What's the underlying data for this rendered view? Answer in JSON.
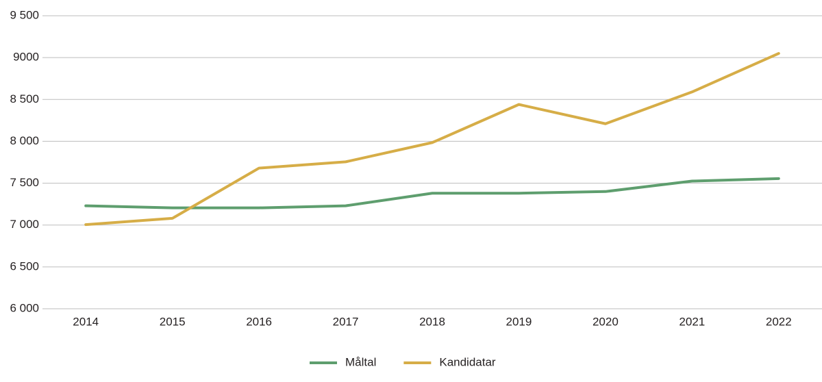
{
  "chart_data": {
    "type": "line",
    "categories": [
      "2014",
      "2015",
      "2016",
      "2017",
      "2018",
      "2019",
      "2020",
      "2021",
      "2022"
    ],
    "series": [
      {
        "name": "Måltal",
        "color": "#5e9e6e",
        "values": [
          7230,
          7205,
          7205,
          7230,
          7380,
          7380,
          7400,
          7525,
          7555
        ]
      },
      {
        "name": "Kandidatar",
        "color": "#d6ad47",
        "values": [
          7005,
          7080,
          7680,
          7755,
          7985,
          8440,
          8210,
          8590,
          9050
        ]
      }
    ],
    "ylim": [
      6000,
      9500
    ],
    "yticks": [
      {
        "value": 6000,
        "label": "6 000"
      },
      {
        "value": 6500,
        "label": "6 500"
      },
      {
        "value": 7000,
        "label": "7 000"
      },
      {
        "value": 7500,
        "label": "7 500"
      },
      {
        "value": 8000,
        "label": "8 000"
      },
      {
        "value": 8500,
        "label": "8 500"
      },
      9000,
      {
        "value": 9500,
        "label": "9 500"
      }
    ],
    "grid": true,
    "legend": "bottom"
  }
}
